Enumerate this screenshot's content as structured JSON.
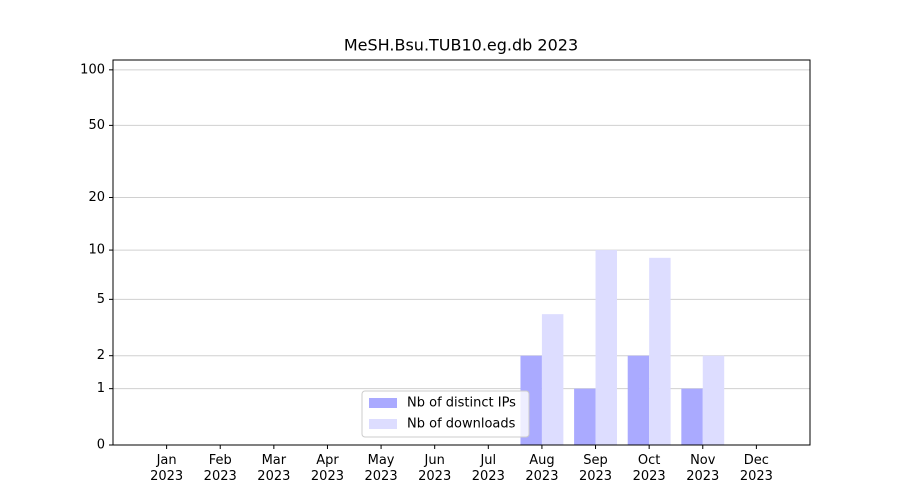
{
  "chart_data": {
    "type": "bar",
    "title": "MeSH.Bsu.TUB10.eg.db 2023",
    "categories": [
      "Jan\n2023",
      "Feb\n2023",
      "Mar\n2023",
      "Apr\n2023",
      "May\n2023",
      "Jun\n2023",
      "Jul\n2023",
      "Aug\n2023",
      "Sep\n2023",
      "Oct\n2023",
      "Nov\n2023",
      "Dec\n2023"
    ],
    "series": [
      {
        "name": "Nb of distinct IPs",
        "color": "#aaaaff",
        "values": [
          0,
          0,
          0,
          0,
          0,
          0,
          0,
          2,
          1,
          2,
          1,
          0
        ]
      },
      {
        "name": "Nb of downloads",
        "color": "#ddddff",
        "values": [
          0,
          0,
          0,
          0,
          0,
          0,
          0,
          4,
          10,
          9,
          2,
          0
        ]
      }
    ],
    "yscale": "log1p",
    "ylim": [
      0,
      113
    ],
    "yticks": [
      0,
      1,
      2,
      5,
      10,
      20,
      50,
      100
    ],
    "grid": true,
    "legend": "lower center"
  }
}
